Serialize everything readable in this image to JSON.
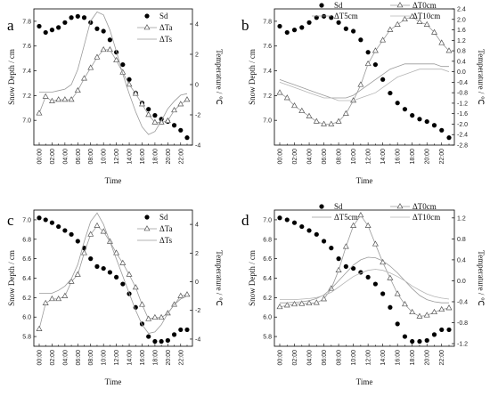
{
  "time_labels": [
    "00:00",
    "02:00",
    "04:00",
    "06:00",
    "08:00",
    "10:00",
    "12:00",
    "14:00",
    "16:00",
    "18:00",
    "20:00",
    "22:00"
  ],
  "chart_data": [
    {
      "type": "line",
      "panel": "a",
      "xlabel": "Time",
      "ylabel_left": "Snow Depth / cm",
      "ylabel_right": "Temperature / ℃",
      "x": [
        "00:00",
        "01:00",
        "02:00",
        "03:00",
        "04:00",
        "05:00",
        "06:00",
        "07:00",
        "08:00",
        "09:00",
        "10:00",
        "11:00",
        "12:00",
        "13:00",
        "14:00",
        "15:00",
        "16:00",
        "17:00",
        "18:00",
        "19:00",
        "20:00",
        "21:00",
        "22:00",
        "23:00"
      ],
      "ylim_left": [
        6.8,
        7.9
      ],
      "yticks_left": [
        "7.0",
        "7.2",
        "7.4",
        "7.6",
        "7.8"
      ],
      "ylim_right": [
        -4,
        5
      ],
      "yticks_right": [
        "-4",
        "-2",
        "0",
        "2",
        "4"
      ],
      "legend": "top-right",
      "series": [
        {
          "name": "Sd",
          "axis": "left",
          "marker": "filled-circle",
          "values": [
            7.76,
            7.71,
            7.73,
            7.75,
            7.79,
            7.83,
            7.84,
            7.83,
            7.79,
            7.74,
            7.72,
            7.65,
            7.55,
            7.45,
            7.33,
            7.22,
            7.14,
            7.09,
            7.04,
            7.01,
            6.99,
            6.96,
            6.92,
            6.86
          ]
        },
        {
          "name": "ΔTa",
          "axis": "right",
          "marker": "open-triangle",
          "values": [
            -1.9,
            -0.8,
            -1.1,
            -1.0,
            -1.0,
            -1.0,
            -0.4,
            0.4,
            1.1,
            1.8,
            2.3,
            2.3,
            1.6,
            0.8,
            0.0,
            -0.6,
            -1.3,
            -2.0,
            -2.5,
            -2.5,
            -2.4,
            -1.7,
            -1.3,
            -1.0
          ]
        },
        {
          "name": "ΔTs",
          "axis": "right",
          "marker": "none",
          "values": [
            -0.5,
            -0.5,
            -0.5,
            -0.4,
            -0.3,
            0.0,
            1.0,
            2.6,
            4.2,
            4.8,
            4.6,
            3.6,
            2.2,
            0.7,
            -0.6,
            -1.8,
            -2.8,
            -3.3,
            -3.1,
            -2.4,
            -1.6,
            -1.1,
            -0.7,
            -0.6
          ]
        }
      ]
    },
    {
      "type": "line",
      "panel": "b",
      "xlabel": "Time",
      "ylabel_left": "Snow Depth / cm",
      "ylabel_right": "Temperature / ℃",
      "x": [
        "00:00",
        "01:00",
        "02:00",
        "03:00",
        "04:00",
        "05:00",
        "06:00",
        "07:00",
        "08:00",
        "09:00",
        "10:00",
        "11:00",
        "12:00",
        "13:00",
        "14:00",
        "15:00",
        "16:00",
        "17:00",
        "18:00",
        "19:00",
        "20:00",
        "21:00",
        "22:00",
        "23:00"
      ],
      "ylim_left": [
        6.8,
        7.9
      ],
      "yticks_left": [
        "7.0",
        "7.2",
        "7.4",
        "7.6",
        "7.8"
      ],
      "ylim_right": [
        -2.8,
        2.4
      ],
      "yticks_right": [
        "-2.8",
        "-2.4",
        "-2.0",
        "-1.6",
        "-1.2",
        "-0.8",
        "-0.4",
        "0.0",
        "0.4",
        "0.8",
        "1.2",
        "1.6",
        "2.0",
        "2.4"
      ],
      "legend": "top",
      "series": [
        {
          "name": "Sd",
          "axis": "left",
          "marker": "filled-circle",
          "values": [
            7.76,
            7.71,
            7.73,
            7.75,
            7.79,
            7.83,
            7.84,
            7.83,
            7.79,
            7.74,
            7.72,
            7.65,
            7.55,
            7.45,
            7.33,
            7.22,
            7.14,
            7.09,
            7.04,
            7.01,
            6.99,
            6.96,
            6.92,
            6.86
          ]
        },
        {
          "name": "ΔT0cm",
          "axis": "right",
          "marker": "open-triangle",
          "values": [
            -0.8,
            -1.0,
            -1.3,
            -1.5,
            -1.7,
            -1.9,
            -2.0,
            -2.0,
            -1.9,
            -1.6,
            -1.1,
            -0.5,
            0.3,
            0.8,
            1.2,
            1.6,
            1.8,
            2.0,
            2.1,
            1.9,
            1.8,
            1.5,
            1.1,
            0.8
          ]
        },
        {
          "name": "ΔT5cm",
          "axis": "right",
          "marker": "none",
          "values": [
            -0.3,
            -0.4,
            -0.5,
            -0.6,
            -0.7,
            -0.8,
            -0.9,
            -1.0,
            -1.0,
            -1.0,
            -0.9,
            -0.7,
            -0.5,
            -0.3,
            -0.1,
            0.1,
            0.2,
            0.3,
            0.3,
            0.3,
            0.3,
            0.3,
            0.2,
            0.2
          ]
        },
        {
          "name": "ΔT10cm",
          "axis": "right",
          "marker": "none",
          "values": [
            -0.4,
            -0.5,
            -0.6,
            -0.7,
            -0.8,
            -0.9,
            -1.0,
            -1.0,
            -1.1,
            -1.1,
            -1.1,
            -1.0,
            -0.9,
            -0.8,
            -0.6,
            -0.4,
            -0.2,
            -0.1,
            0.0,
            0.1,
            0.1,
            0.1,
            0.1,
            0.0
          ]
        }
      ]
    },
    {
      "type": "line",
      "panel": "c",
      "xlabel": "Time",
      "ylabel_left": "Snow Depth / cm",
      "ylabel_right": "Temperature / ℃",
      "x": [
        "00:00",
        "01:00",
        "02:00",
        "03:00",
        "04:00",
        "05:00",
        "06:00",
        "07:00",
        "08:00",
        "09:00",
        "10:00",
        "11:00",
        "12:00",
        "13:00",
        "14:00",
        "15:00",
        "16:00",
        "17:00",
        "18:00",
        "19:00",
        "20:00",
        "21:00",
        "22:00",
        "23:00"
      ],
      "ylim_left": [
        5.7,
        7.1
      ],
      "yticks_left": [
        "5.8",
        "6.0",
        "6.2",
        "6.4",
        "6.6",
        "6.8",
        "7.0"
      ],
      "ylim_right": [
        -4.5,
        5
      ],
      "yticks_right": [
        "-4",
        "-2",
        "0",
        "2",
        "4"
      ],
      "legend": "top-right",
      "series": [
        {
          "name": "Sd",
          "axis": "left",
          "marker": "filled-circle",
          "values": [
            7.02,
            7.0,
            6.97,
            6.93,
            6.89,
            6.85,
            6.78,
            6.71,
            6.6,
            6.52,
            6.5,
            6.46,
            6.41,
            6.34,
            6.24,
            6.1,
            5.93,
            5.8,
            5.75,
            5.75,
            5.76,
            5.82,
            5.87,
            5.87
          ]
        },
        {
          "name": "ΔTa",
          "axis": "right",
          "marker": "open-triangle",
          "values": [
            -3.3,
            -1.5,
            -1.2,
            -1.2,
            -1.0,
            0.0,
            0.5,
            2.0,
            3.3,
            3.9,
            3.5,
            2.8,
            2.0,
            1.3,
            0.5,
            -0.4,
            -1.6,
            -2.6,
            -2.5,
            -2.5,
            -2.2,
            -1.6,
            -1.0,
            -0.9
          ]
        },
        {
          "name": "ΔTs",
          "axis": "right",
          "marker": "none",
          "values": [
            -0.8,
            -0.8,
            -0.8,
            -0.6,
            -0.3,
            0.2,
            1.2,
            2.8,
            4.2,
            4.8,
            4.0,
            2.8,
            1.6,
            0.4,
            -0.8,
            -2.0,
            -3.0,
            -3.6,
            -3.5,
            -3.0,
            -2.2,
            -1.6,
            -1.2,
            -1.0
          ]
        }
      ]
    },
    {
      "type": "line",
      "panel": "d",
      "xlabel": "Time",
      "ylabel_left": "Snow Depth / cm",
      "ylabel_right": "Temperature / ℃",
      "x": [
        "00:00",
        "01:00",
        "02:00",
        "03:00",
        "04:00",
        "05:00",
        "06:00",
        "07:00",
        "08:00",
        "09:00",
        "10:00",
        "11:00",
        "12:00",
        "13:00",
        "14:00",
        "15:00",
        "16:00",
        "17:00",
        "18:00",
        "19:00",
        "20:00",
        "21:00",
        "22:00",
        "23:00"
      ],
      "ylim_left": [
        5.7,
        7.1
      ],
      "yticks_left": [
        "5.8",
        "6.0",
        "6.2",
        "6.4",
        "6.6",
        "6.8",
        "7.0"
      ],
      "ylim_right": [
        -1.25,
        1.35
      ],
      "yticks_right": [
        "-1.2",
        "-0.8",
        "-0.4",
        "0.0",
        "0.4",
        "0.8",
        "1.2"
      ],
      "legend": "top",
      "series": [
        {
          "name": "Sd",
          "axis": "left",
          "marker": "filled-circle",
          "values": [
            7.02,
            7.0,
            6.97,
            6.93,
            6.89,
            6.85,
            6.78,
            6.71,
            6.6,
            6.52,
            6.5,
            6.46,
            6.41,
            6.34,
            6.24,
            6.1,
            5.93,
            5.8,
            5.75,
            5.75,
            5.76,
            5.82,
            5.87,
            5.87
          ]
        },
        {
          "name": "ΔT0cm",
          "axis": "right",
          "marker": "open-triangle",
          "values": [
            -0.5,
            -0.47,
            -0.45,
            -0.44,
            -0.43,
            -0.42,
            -0.35,
            -0.15,
            0.2,
            0.65,
            1.05,
            1.25,
            1.05,
            0.7,
            0.35,
            0.05,
            -0.25,
            -0.45,
            -0.6,
            -0.68,
            -0.66,
            -0.6,
            -0.55,
            -0.52
          ]
        },
        {
          "name": "ΔT5cm",
          "axis": "right",
          "marker": "none",
          "values": [
            -0.42,
            -0.42,
            -0.41,
            -0.4,
            -0.38,
            -0.34,
            -0.27,
            -0.15,
            0.0,
            0.15,
            0.3,
            0.4,
            0.45,
            0.44,
            0.38,
            0.28,
            0.15,
            0.0,
            -0.15,
            -0.28,
            -0.36,
            -0.4,
            -0.42,
            -0.42
          ]
        },
        {
          "name": "ΔT10cm",
          "axis": "right",
          "marker": "none",
          "values": [
            -0.36,
            -0.36,
            -0.36,
            -0.35,
            -0.34,
            -0.32,
            -0.28,
            -0.22,
            -0.12,
            -0.02,
            0.08,
            0.15,
            0.2,
            0.22,
            0.2,
            0.15,
            0.08,
            0.0,
            -0.1,
            -0.18,
            -0.25,
            -0.3,
            -0.33,
            -0.35
          ]
        }
      ]
    }
  ]
}
